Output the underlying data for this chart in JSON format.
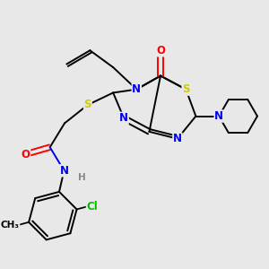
{
  "bg_color": "#e8e8e8",
  "atom_colors": {
    "N": "#0000ee",
    "S": "#cccc00",
    "O": "#ff0000",
    "Cl": "#00bb00",
    "H": "#888888",
    "C": "#000000"
  },
  "bond_width": 1.4,
  "font_size": 8.5,
  "font_size_small": 7.5,
  "title": ""
}
